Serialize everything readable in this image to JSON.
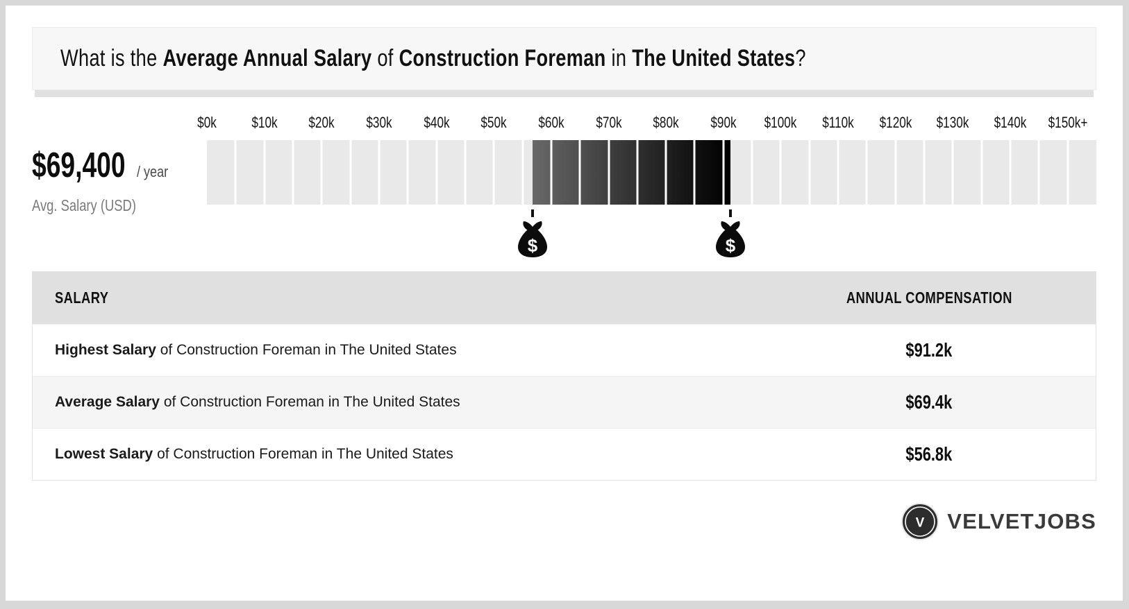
{
  "page_title": {
    "parts": [
      {
        "text": "What is the ",
        "bold": false
      },
      {
        "text": "Average Annual Salary",
        "bold": true
      },
      {
        "text": " of ",
        "bold": false
      },
      {
        "text": "Construction Foreman",
        "bold": true
      },
      {
        "text": " in ",
        "bold": false
      },
      {
        "text": "The United States",
        "bold": true
      },
      {
        "text": "?",
        "bold": false
      }
    ]
  },
  "summary": {
    "amount": "$69,400",
    "per": "/ year",
    "label": "Avg. Salary (USD)"
  },
  "chart_data": {
    "type": "bar",
    "subtype": "salary-range-indicator",
    "axis_tick_labels": [
      "$0k",
      "$10k",
      "$20k",
      "$30k",
      "$40k",
      "$50k",
      "$60k",
      "$70k",
      "$80k",
      "$90k",
      "$100k",
      "$110k",
      "$120k",
      "$130k",
      "$140k",
      "$150k+"
    ],
    "axis_tick_step_k": 10,
    "axis_range_k": [
      0,
      155
    ],
    "segment_step_k": 5,
    "segment_color": "#e9e9e9",
    "grid": false,
    "highlight_range_k": {
      "start": 56.8,
      "end": 91.2
    },
    "highlight_gradient": [
      "#696969",
      "#000000"
    ],
    "markers": [
      {
        "value_k": 56.8,
        "icon": "money-bag-icon",
        "symbol": "$"
      },
      {
        "value_k": 91.2,
        "icon": "money-bag-icon",
        "symbol": "$"
      }
    ],
    "values": {
      "lowest_k": 56.8,
      "average_k": 69.4,
      "highest_k": 91.2
    }
  },
  "table": {
    "headers": [
      "SALARY",
      "ANNUAL COMPENSATION"
    ],
    "rows": [
      {
        "term": "Highest Salary",
        "description": " of Construction Foreman in The United States",
        "value": "$91.2k"
      },
      {
        "term": "Average Salary",
        "description": " of Construction Foreman in The United States",
        "value": "$69.4k"
      },
      {
        "term": "Lowest Salary",
        "description": " of Construction Foreman in The United States",
        "value": "$56.8k"
      }
    ]
  },
  "footer": {
    "brand_name": "VELVETJOBS",
    "logo_letter": "V"
  },
  "colors": {
    "page_frame": "#d8d8d8",
    "card_bg": "#ffffff",
    "title_box_bg": "#f7f7f7",
    "title_shadow": "#e0e0e0",
    "segment_light": "#e9e9e9",
    "header_row_bg": "#e0e0e0",
    "row_alt_bg": "#f5f5f5",
    "text_primary": "#111111",
    "text_muted": "#7a7a7a",
    "logo_dark": "#2d2d2d"
  }
}
